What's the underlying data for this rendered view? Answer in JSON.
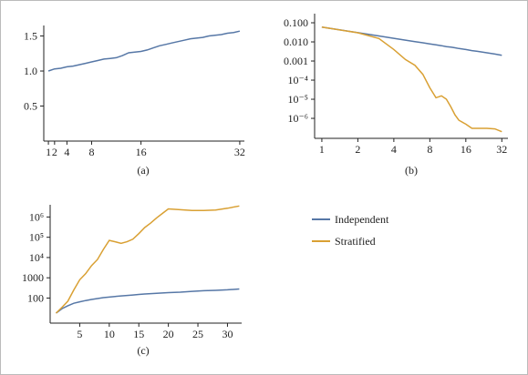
{
  "chart_data": [
    {
      "type": "line",
      "xlabel": "(a)",
      "x": [
        1,
        2,
        3,
        4,
        5,
        6,
        7,
        8,
        9,
        10,
        11,
        12,
        13,
        14,
        15,
        16,
        17,
        18,
        19,
        20,
        21,
        22,
        23,
        24,
        25,
        26,
        27,
        28,
        29,
        30,
        31,
        32
      ],
      "series": [
        {
          "color": "#5677a6",
          "values": [
            1.0,
            1.03,
            1.04,
            1.06,
            1.07,
            1.09,
            1.11,
            1.13,
            1.15,
            1.17,
            1.18,
            1.19,
            1.22,
            1.26,
            1.27,
            1.28,
            1.3,
            1.33,
            1.36,
            1.38,
            1.4,
            1.42,
            1.44,
            1.46,
            1.47,
            1.48,
            1.5,
            1.51,
            1.52,
            1.54,
            1.55,
            1.57
          ]
        }
      ],
      "xlim": [
        0.25,
        32.75
      ],
      "xticks": [
        1,
        2,
        4,
        8,
        16,
        32
      ],
      "ylim": [
        0,
        1.65
      ],
      "yticks": [
        0.5,
        {
          "value": 1.0,
          "label": "1.0"
        },
        1.5
      ]
    },
    {
      "type": "line",
      "xlabel": "(b)",
      "xscale": "log2",
      "yscale": "log",
      "x": [
        1,
        2,
        3,
        4,
        5,
        6,
        7,
        8,
        9,
        10,
        11,
        12,
        13,
        14,
        16,
        18,
        20,
        24,
        28,
        32
      ],
      "series": [
        {
          "color": "#5677a6",
          "values": [
            0.06,
            0.0304,
            0.0205,
            0.0154,
            0.0124,
            0.0104,
            0.009,
            0.0079,
            0.007,
            0.0063,
            0.0057,
            0.0053,
            0.0049,
            0.0045,
            0.004,
            0.0035,
            0.0032,
            0.0027,
            0.0023,
            0.002
          ]
        },
        {
          "color": "#d9a033",
          "values": [
            0.06,
            0.03,
            0.015,
            0.004,
            0.0012,
            0.0006,
            0.0002,
            4e-05,
            1.2e-05,
            1.5e-05,
            1e-05,
            4e-06,
            1.5e-06,
            8e-07,
            5e-07,
            3e-07,
            3e-07,
            3e-07,
            2.8e-07,
            2e-07
          ]
        }
      ],
      "xlim": [
        0.87,
        36
      ],
      "xticks": [
        1,
        2,
        4,
        8,
        16,
        32
      ],
      "ylim": [
        9e-08,
        0.3
      ],
      "yticks": [
        {
          "value": 0.1,
          "label": "0.100"
        },
        {
          "value": 0.01,
          "label": "0.010"
        },
        0.001,
        {
          "value": 0.0001,
          "label": "10⁻⁴"
        },
        {
          "value": 1e-05,
          "label": "10⁻⁵"
        },
        {
          "value": 1e-06,
          "label": "10⁻⁶"
        }
      ]
    },
    {
      "type": "line",
      "xlabel": "(c)",
      "yscale": "log",
      "x": [
        1,
        2,
        3,
        4,
        5,
        6,
        7,
        8,
        9,
        10,
        11,
        12,
        13,
        14,
        15,
        16,
        17,
        18,
        19,
        20,
        22,
        24,
        26,
        28,
        30,
        32
      ],
      "series": [
        {
          "name": "Independent",
          "color": "#5677a6",
          "values": [
            18,
            30,
            42,
            55,
            65,
            75,
            85,
            95,
            105,
            112,
            120,
            128,
            135,
            142,
            150,
            158,
            165,
            172,
            178,
            185,
            195,
            215,
            230,
            240,
            255,
            280
          ]
        },
        {
          "name": "Stratified",
          "color": "#d9a033",
          "values": [
            18,
            35,
            70,
            250,
            800,
            1600,
            4000,
            8000,
            25000,
            70000,
            60000,
            50000,
            60000,
            80000,
            150000,
            300000,
            500000,
            900000,
            1500000,
            2500000,
            2300000,
            2100000,
            2100000,
            2200000,
            2700000,
            3500000
          ]
        }
      ],
      "xlim": [
        0,
        32.4
      ],
      "xticks": [
        5,
        10,
        15,
        20,
        25,
        30
      ],
      "ylim": [
        5.8,
        4000000
      ],
      "yticks": [
        100,
        1000,
        {
          "value": 10000,
          "label": "10⁴"
        },
        {
          "value": 100000,
          "label": "10⁵"
        },
        {
          "value": 1000000,
          "label": "10⁶"
        }
      ]
    }
  ]
}
